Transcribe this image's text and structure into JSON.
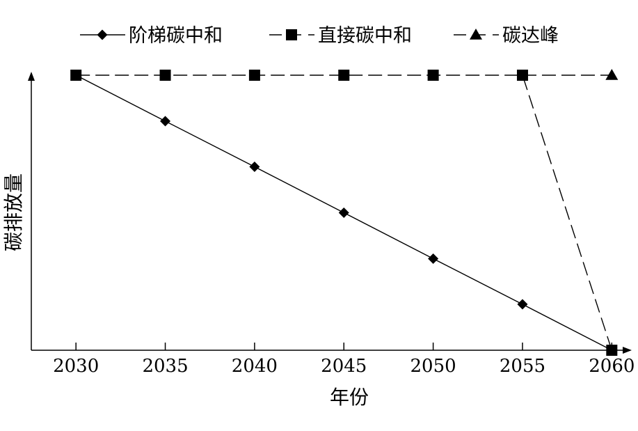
{
  "chart_data": {
    "type": "line",
    "title": "",
    "xlabel": "年份",
    "ylabel": "碳排放量",
    "x": [
      2030,
      2035,
      2040,
      2045,
      2050,
      2055,
      2060
    ],
    "xlim": [
      2027.5,
      2061
    ],
    "ylim": [
      0,
      100
    ],
    "y_ticks_shown": false,
    "grid": false,
    "legend_position": "top",
    "series": [
      {
        "name": "阶梯碳中和",
        "marker": "diamond",
        "line": "solid",
        "points": [
          [
            2030,
            100
          ],
          [
            2035,
            83.3
          ],
          [
            2040,
            66.7
          ],
          [
            2045,
            50
          ],
          [
            2050,
            33.3
          ],
          [
            2055,
            16.7
          ],
          [
            2060,
            0
          ]
        ]
      },
      {
        "name": "直接碳中和",
        "marker": "square",
        "line": "dashed",
        "points": [
          [
            2030,
            100
          ],
          [
            2035,
            100
          ],
          [
            2040,
            100
          ],
          [
            2045,
            100
          ],
          [
            2050,
            100
          ],
          [
            2055,
            100
          ],
          [
            2060,
            0
          ]
        ]
      },
      {
        "name": "碳达峰",
        "marker": "triangle",
        "line": "dashed",
        "points": [
          [
            2030,
            100
          ],
          [
            2035,
            100
          ],
          [
            2040,
            100
          ],
          [
            2045,
            100
          ],
          [
            2050,
            100
          ],
          [
            2055,
            100
          ],
          [
            2060,
            100
          ]
        ]
      }
    ]
  }
}
